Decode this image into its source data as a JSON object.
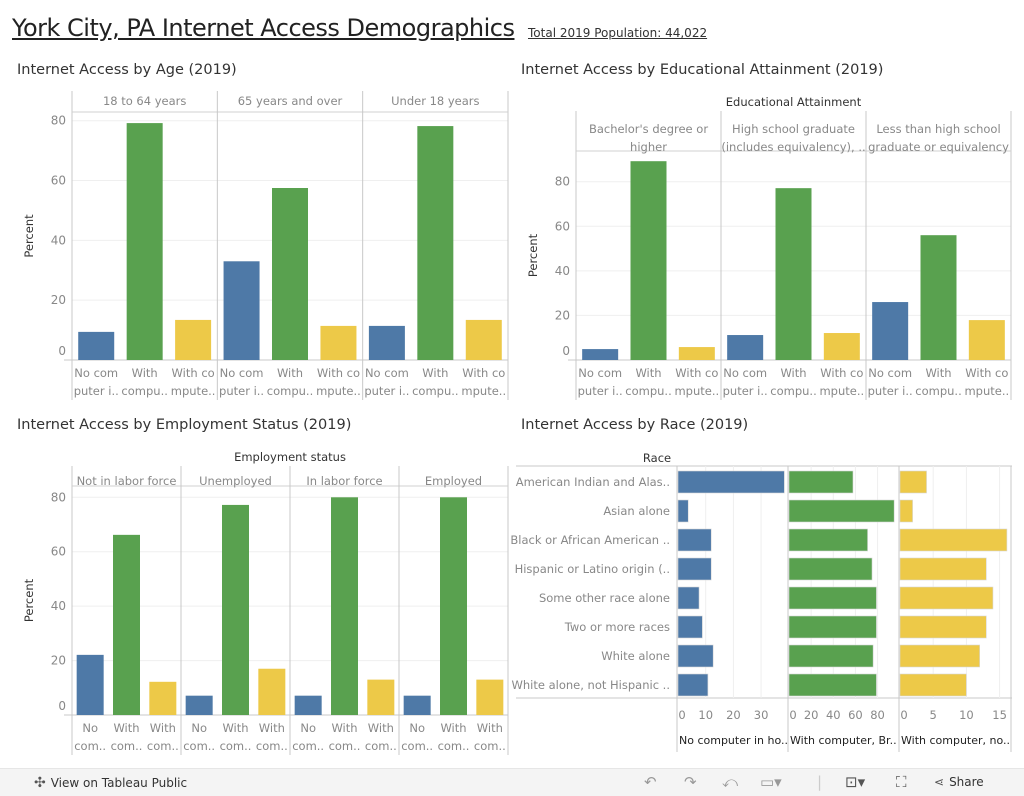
{
  "header": {
    "title": "York City, PA Internet Access Demographics",
    "population": "Total 2019 Population: 44,022"
  },
  "colors": {
    "no_computer": "#4e79a7",
    "broadband": "#59a14f",
    "no_internet": "#edc948"
  },
  "chart_data": [
    {
      "type": "bar",
      "title": "Internet Access by Age (2019)",
      "facet_title": "",
      "ylabel": "Percent",
      "ylim": [
        0,
        82
      ],
      "yticks": [
        "0",
        "20",
        "40",
        "60",
        "80"
      ],
      "x_labels": [
        [
          "No com",
          "puter i.."
        ],
        [
          "With",
          "compu.."
        ],
        [
          "With co",
          "mpute.."
        ]
      ],
      "facets": [
        {
          "label": [
            "18 to 64 years"
          ],
          "values": [
            9.4,
            79.2,
            13.4
          ]
        },
        {
          "label": [
            "65 years and over"
          ],
          "values": [
            33.0,
            57.5,
            11.4
          ]
        },
        {
          "label": [
            "Under 18 years"
          ],
          "values": [
            11.4,
            78.2,
            13.4
          ]
        }
      ]
    },
    {
      "type": "bar",
      "title": "Internet Access by Educational Attainment (2019)",
      "facet_title": "Educational Attainment",
      "ylabel": "Percent",
      "ylim": [
        0,
        93
      ],
      "yticks": [
        "0",
        "20",
        "40",
        "60",
        "80"
      ],
      "x_labels": [
        [
          "No com",
          "puter i.."
        ],
        [
          "With",
          "compu.."
        ],
        [
          "With co",
          "mpute.."
        ]
      ],
      "facets": [
        {
          "label": [
            "Bachelor's degree or",
            "higher"
          ],
          "values": [
            4.9,
            89.2,
            5.8
          ]
        },
        {
          "label": [
            "High school graduate",
            "(includes equivalency), .."
          ],
          "values": [
            11.2,
            77.1,
            12.1
          ]
        },
        {
          "label": [
            "Less than high school",
            "graduate or equivalency"
          ],
          "values": [
            26.0,
            56.0,
            17.9
          ]
        }
      ]
    },
    {
      "type": "bar",
      "title": "Internet Access by Employment Status (2019)",
      "facet_title": "Employment status",
      "ylabel": "Percent",
      "ylim": [
        0,
        84
      ],
      "yticks": [
        "0",
        "20",
        "40",
        "60",
        "80"
      ],
      "x_labels": [
        [
          "No",
          "com.."
        ],
        [
          "With",
          "com.."
        ],
        [
          "With",
          "com.."
        ]
      ],
      "facets": [
        {
          "label": [
            "Not in labor force"
          ],
          "values": [
            22.1,
            66.2,
            12.2
          ]
        },
        {
          "label": [
            "Unemployed"
          ],
          "values": [
            7.1,
            77.2,
            17.0
          ]
        },
        {
          "label": [
            "In labor force"
          ],
          "values": [
            7.1,
            80.0,
            13.0
          ]
        },
        {
          "label": [
            "Employed"
          ],
          "values": [
            7.1,
            80.0,
            13.0
          ]
        }
      ]
    },
    {
      "type": "bar",
      "orientation": "horizontal",
      "title": "Internet Access by Race (2019)",
      "row_title": "Race",
      "categories": [
        "American Indian and Alas..",
        "Asian alone",
        "Black or African American ..",
        "Hispanic or Latino origin (..",
        "Some other race alone",
        "Two or more races",
        "White alone",
        "White alone, not Hispanic .."
      ],
      "series": [
        {
          "name": "No computer in ho..",
          "ticks": [
            "0",
            "10",
            "20",
            "30"
          ],
          "tick_values": [
            0,
            10,
            20,
            30
          ],
          "max": 40,
          "values": [
            38.4,
            3.7,
            12.0,
            12.0,
            7.6,
            8.8,
            12.7,
            10.8
          ]
        },
        {
          "name": "With computer, Br..",
          "ticks": [
            "0",
            "20",
            "40",
            "60",
            "80"
          ],
          "tick_values": [
            0,
            20,
            40,
            60,
            80
          ],
          "max": 100,
          "values": [
            57.8,
            95.0,
            71.0,
            75.0,
            79.0,
            79.0,
            76.0,
            79.0
          ]
        },
        {
          "name": "With computer, no..",
          "ticks": [
            "0",
            "5",
            "10",
            "15"
          ],
          "tick_values": [
            0,
            5,
            10,
            15
          ],
          "max": 16.8,
          "values": [
            4.0,
            1.9,
            16.1,
            13.0,
            14.0,
            13.0,
            12.0,
            10.0
          ]
        }
      ]
    }
  ],
  "footer": {
    "view_label": "View on Tableau Public",
    "share_label": "Share",
    "icons": [
      "tableau-logo-icon",
      "undo-icon",
      "redo-icon",
      "revert-icon",
      "refresh-icon",
      "download-icon",
      "fullscreen-icon",
      "share-icon"
    ]
  }
}
